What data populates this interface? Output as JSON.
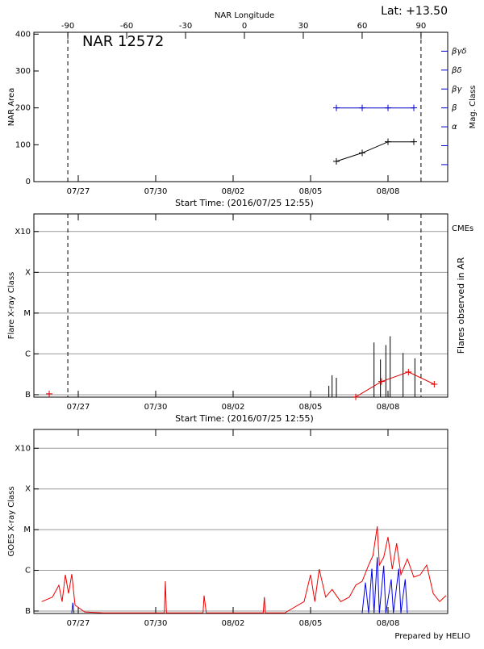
{
  "chart_data": [
    {
      "type": "line",
      "title": "NAR 12572",
      "annotation": "Lat: +13.50",
      "x2label": "NAR Longitude",
      "x2lim": [
        -107.3,
        103.6
      ],
      "x2ticks": [
        -90,
        -60,
        -30,
        0,
        30,
        60,
        90
      ],
      "limb_lines": [
        -90,
        90
      ],
      "xlabel": "Start Time: (2016/07/25 12:55)",
      "xlim": [
        "2016-07-25T06:45",
        "2016-08-10T07:30"
      ],
      "xticks": [
        {
          "value": "2016-07-27T00:00",
          "label": "07/27"
        },
        {
          "value": "2016-07-30T00:00",
          "label": "07/30"
        },
        {
          "value": "2016-08-02T00:00",
          "label": "08/02"
        },
        {
          "value": "2016-08-05T00:00",
          "label": "08/05"
        },
        {
          "value": "2016-08-08T00:00",
          "label": "08/08"
        }
      ],
      "ylabel": "NAR Area",
      "ylim": [
        0,
        405
      ],
      "yticks": [
        0,
        100,
        200,
        300,
        400
      ],
      "y2label": "Mag. Class",
      "y2lim": [
        -0.9,
        7
      ],
      "y2ticks": [
        null,
        null,
        "α",
        "β",
        "βγ",
        "βδ",
        "βγδ"
      ],
      "y2color": "#0000cc",
      "series": [
        {
          "type": "line",
          "marker": "+",
          "color": "#000000",
          "x": [
            "2016-08-06T00:00",
            "2016-08-07T00:00",
            "2016-08-08T00:00",
            "2016-08-09T00:00"
          ],
          "values": [
            55,
            78,
            108,
            108
          ]
        },
        {
          "type": "line",
          "marker": "+",
          "axis": "y2",
          "color": "#0000cc",
          "x": [
            "2016-08-06T00:00",
            "2016-08-07T00:00",
            "2016-08-08T00:00",
            "2016-08-09T00:00"
          ],
          "values": [
            "β",
            "β",
            "β",
            "β"
          ]
        }
      ]
    },
    {
      "type": "line",
      "limb_lines": [
        -90,
        90
      ],
      "xlabel": "Start Time: (2016/07/25 12:55)",
      "xlim": [
        "2016-07-25T06:45",
        "2016-08-10T07:30"
      ],
      "xticks": [
        {
          "value": "2016-07-27T00:00",
          "label": "07/27"
        },
        {
          "value": "2016-07-30T00:00",
          "label": "07/30"
        },
        {
          "value": "2016-08-02T00:00",
          "label": "08/02"
        },
        {
          "value": "2016-08-05T00:00",
          "label": "08/05"
        },
        {
          "value": "2016-08-08T00:00",
          "label": "08/08"
        }
      ],
      "ylabel": "Flare X-ray Class",
      "y2label": "Flares observed in AR",
      "ylog": true,
      "grid": true,
      "ylim": [
        8.7e-08,
        0.0027
      ],
      "yticks": [
        {
          "value": 1e-07,
          "label": "B"
        },
        {
          "value": 1e-06,
          "label": "C"
        },
        {
          "value": 1e-05,
          "label": "M"
        },
        {
          "value": 0.0001,
          "label": "X"
        },
        {
          "value": 0.001,
          "label": "X10"
        }
      ],
      "series": [
        {
          "type": "stem",
          "color": "#000000",
          "x": [
            "2016-08-05T17:00",
            "2016-08-05T20:00",
            "2016-08-06T00:00",
            "2016-08-07T11:00",
            "2016-08-07T17:00",
            "2016-08-07T22:00",
            "2016-08-08T02:00",
            "2016-08-08T14:00",
            "2016-08-09T01:00"
          ],
          "values": [
            1.65e-07,
            3e-07,
            2.6e-07,
            1.9e-06,
            7.3e-07,
            1.65e-06,
            2.7e-06,
            1.05e-06,
            7.8e-07
          ]
        },
        {
          "type": "line",
          "marker": "+",
          "name": "CMEs",
          "color": "#dd0000",
          "x": [
            "2016-07-25T21:00",
            null,
            "2016-08-06T18:00",
            "2016-08-07T18:00",
            "2016-08-08T19:00",
            "2016-08-09T19:00"
          ],
          "values": [
            1.05e-07,
            null,
            8.8e-08,
            2.1e-07,
            3.6e-07,
            1.8e-07
          ]
        }
      ]
    },
    {
      "type": "line",
      "xlim": [
        "2016-07-25T06:45",
        "2016-08-10T07:30"
      ],
      "xticks": [
        {
          "value": "2016-07-27T00:00",
          "label": "07/27"
        },
        {
          "value": "2016-07-30T00:00",
          "label": "07/30"
        },
        {
          "value": "2016-08-02T00:00",
          "label": "08/02"
        },
        {
          "value": "2016-08-05T00:00",
          "label": "08/05"
        },
        {
          "value": "2016-08-08T00:00",
          "label": "08/08"
        }
      ],
      "ylabel": "GOES X-ray Class",
      "ylog": true,
      "grid": true,
      "ylim": [
        8.7e-08,
        0.0029
      ],
      "yticks": [
        {
          "value": 1e-07,
          "label": "B"
        },
        {
          "value": 1e-06,
          "label": "C"
        },
        {
          "value": 1e-05,
          "label": "M"
        },
        {
          "value": 0.0001,
          "label": "X"
        },
        {
          "value": 0.001,
          "label": "X10"
        }
      ],
      "footer": "Prepared by HELIO",
      "series": [
        {
          "type": "line",
          "color": "#ee0000",
          "x": [
            "2016-07-25T14:00",
            "2016-07-26T00:00",
            "2016-07-26T06:00",
            "2016-07-26T09:00",
            "2016-07-26T12:00",
            "2016-07-26T15:00",
            "2016-07-26T18:00",
            "2016-07-26T21:00",
            "2016-07-27T06:00",
            "2016-07-28T00:00",
            "2016-07-29T00:00",
            "2016-07-30T08:00",
            "2016-07-30T09:00",
            "2016-07-30T10:00",
            "2016-07-31T20:00",
            "2016-07-31T21:00",
            "2016-07-31T23:00",
            "2016-08-02T00:00",
            "2016-08-03T04:00",
            "2016-08-03T05:00",
            "2016-08-03T06:00",
            "2016-08-04T00:00",
            "2016-08-04T18:00",
            "2016-08-05T00:00",
            "2016-08-05T04:00",
            "2016-08-05T08:00",
            "2016-08-05T14:00",
            "2016-08-05T20:00",
            "2016-08-06T04:00",
            "2016-08-06T12:00",
            "2016-08-06T18:00",
            "2016-08-07T00:00",
            "2016-08-07T06:00",
            "2016-08-07T10:00",
            "2016-08-07T14:00",
            "2016-08-07T16:00",
            "2016-08-07T20:00",
            "2016-08-08T00:00",
            "2016-08-08T04:00",
            "2016-08-08T08:00",
            "2016-08-08T12:00",
            "2016-08-08T18:00",
            "2016-08-09T00:00",
            "2016-08-09T06:00",
            "2016-08-09T12:00",
            "2016-08-09T18:00",
            "2016-08-10T00:00",
            "2016-08-10T06:00"
          ],
          "values": [
            1.7e-07,
            2.2e-07,
            4.3e-07,
            1.7e-07,
            7.8e-07,
            2.7e-07,
            8.1e-07,
            1.4e-07,
            9.5e-08,
            9e-08,
            9e-08,
            9e-08,
            5.4e-07,
            9e-08,
            9e-08,
            2.4e-07,
            9e-08,
            9e-08,
            9e-08,
            2.2e-07,
            9e-08,
            9e-08,
            1.7e-07,
            7.8e-07,
            1.7e-07,
            1.07e-06,
            2.2e-07,
            3.4e-07,
            1.7e-07,
            2.2e-07,
            4.3e-07,
            5.4e-07,
            1.35e-06,
            2.3e-06,
            1.2e-05,
            1.35e-06,
            2.1e-06,
            6.6e-06,
            1.07e-06,
            4.6e-06,
            7.8e-07,
            1.9e-06,
            6.8e-07,
            7.8e-07,
            1.35e-06,
            2.7e-07,
            1.7e-07,
            2.4e-07
          ]
        },
        {
          "type": "line",
          "color": "#0000ee",
          "x": [
            "2016-07-26T18:00",
            "2016-07-26T19:00",
            "2016-07-26T20:00",
            null,
            "2016-08-07T00:00",
            "2016-08-07T03:00",
            "2016-08-07T06:00",
            "2016-08-07T09:00",
            "2016-08-07T11:00",
            "2016-08-07T14:00",
            "2016-08-07T16:00",
            "2016-08-07T20:00",
            "2016-08-07T22:00",
            "2016-08-08T03:00",
            "2016-08-08T05:00",
            "2016-08-08T10:00",
            "2016-08-08T12:00",
            "2016-08-08T16:00",
            "2016-08-08T18:00"
          ],
          "values": [
            9e-08,
            1.6e-07,
            9e-08,
            null,
            9e-08,
            5e-07,
            9e-08,
            1.1e-06,
            9e-08,
            2.1e-06,
            9e-08,
            1.3e-06,
            9e-08,
            6e-07,
            9e-08,
            1.1e-06,
            9e-08,
            6e-07,
            9e-08
          ]
        }
      ]
    }
  ]
}
